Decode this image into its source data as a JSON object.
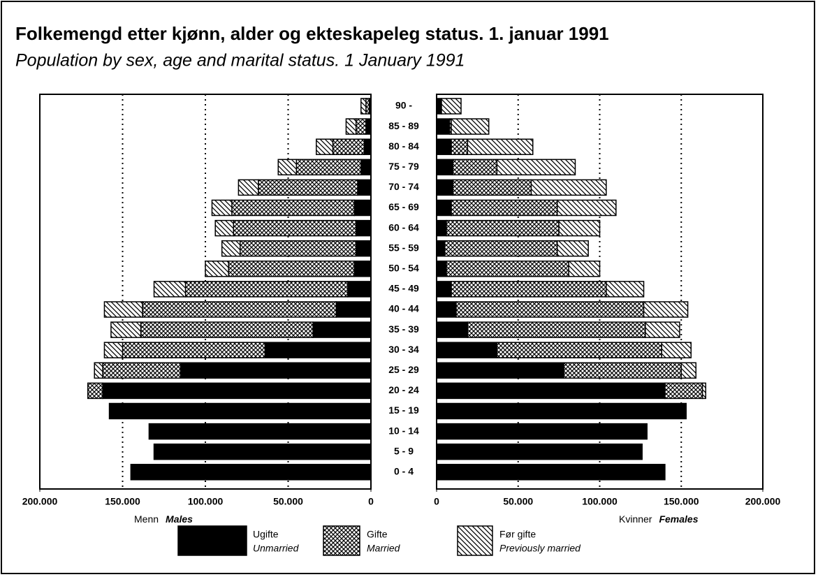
{
  "chart_data": {
    "type": "bar",
    "title": "Folkemengd etter kjønn, alder og ekteskapeleg status. 1. januar 1991",
    "subtitle": "Population by sex, age and marital status. 1 January 1991",
    "categories": [
      "0 - 4",
      "5 - 9",
      "10 - 14",
      "15 - 19",
      "20 - 24",
      "25 - 29",
      "30 - 34",
      "35 - 39",
      "40 - 44",
      "45 - 49",
      "50 - 54",
      "55 - 59",
      "60 - 64",
      "65 - 69",
      "70 - 74",
      "75 - 79",
      "80 - 84",
      "85 - 89",
      "90 -"
    ],
    "legend": [
      {
        "name": "Ugifte",
        "name_en": "Unmarried",
        "pattern": "solid"
      },
      {
        "name": "Gifte",
        "name_en": "Married",
        "pattern": "cross"
      },
      {
        "name": "Før gifte",
        "name_en": "Previously married",
        "pattern": "diagonal"
      }
    ],
    "grid": true,
    "panels": [
      {
        "label": "Menn",
        "label_en": "Males",
        "side": "left",
        "xlim": [
          0,
          200000
        ],
        "xticks": [
          {
            "value": 200000,
            "label": "200.000"
          },
          {
            "value": 150000,
            "label": "150.000"
          },
          {
            "value": 100000,
            "label": "100.000"
          },
          {
            "value": 50000,
            "label": "50.000"
          },
          0
        ],
        "values": [
          [
            145000,
            131000,
            134000,
            158000,
            162000,
            115000,
            64000,
            35000,
            21000,
            14000,
            10000,
            9000,
            9000,
            10000,
            8000,
            6000,
            4000,
            3000,
            1000
          ],
          [
            0,
            0,
            0,
            0,
            9000,
            47000,
            86000,
            104000,
            117000,
            98000,
            76000,
            70000,
            74000,
            74000,
            60000,
            39000,
            19000,
            6000,
            2000
          ],
          [
            0,
            0,
            0,
            0,
            0,
            5000,
            11000,
            18000,
            23000,
            19000,
            14000,
            11000,
            11000,
            12000,
            12000,
            11000,
            10000,
            6000,
            3000
          ]
        ]
      },
      {
        "label": "Kvinner",
        "label_en": "Females",
        "side": "right",
        "xlim": [
          0,
          200000
        ],
        "xticks": [
          0,
          {
            "value": 50000,
            "label": "50.000"
          },
          {
            "value": 100000,
            "label": "100.000"
          },
          {
            "value": 150000,
            "label": "150.000"
          },
          {
            "value": 200000,
            "label": "200.000"
          }
        ],
        "values": [
          [
            140000,
            126000,
            129000,
            153000,
            140000,
            78000,
            37000,
            19000,
            12000,
            9000,
            6000,
            5000,
            6000,
            9000,
            10000,
            10000,
            9000,
            8000,
            3000
          ],
          [
            0,
            0,
            0,
            0,
            23000,
            72000,
            101000,
            109000,
            115000,
            95000,
            75000,
            69000,
            69000,
            65000,
            48000,
            27000,
            10000,
            1000,
            0
          ],
          [
            0,
            0,
            0,
            0,
            2000,
            9000,
            18000,
            21000,
            27000,
            23000,
            19000,
            19000,
            25000,
            36000,
            46000,
            48000,
            40000,
            23000,
            12000
          ]
        ]
      }
    ]
  }
}
